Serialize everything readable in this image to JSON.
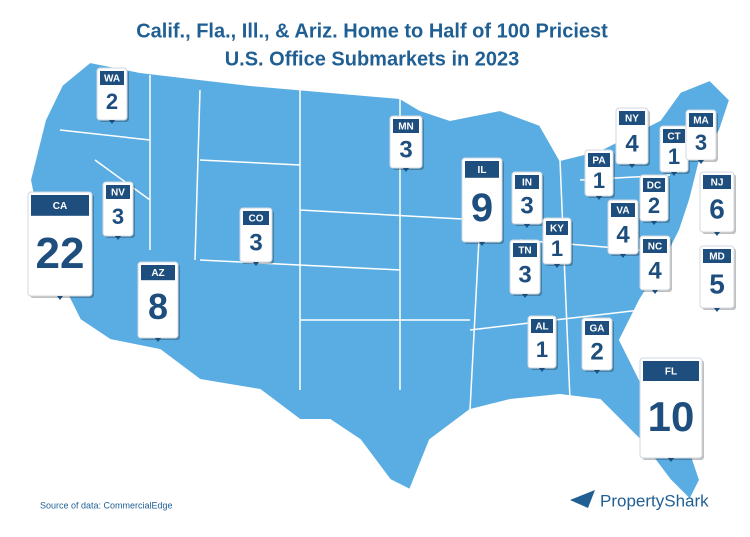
{
  "title": [
    "Calif., Fla., Ill., & Ariz. Home to Half of 100 Priciest",
    "U.S. Office Submarkets in 2023"
  ],
  "markers": [
    {
      "state": "WA",
      "count": "2"
    },
    {
      "state": "MN",
      "count": "3"
    },
    {
      "state": "NY",
      "count": "4"
    },
    {
      "state": "CT",
      "count": "1"
    },
    {
      "state": "MA",
      "count": "3"
    },
    {
      "state": "PA",
      "count": "1"
    },
    {
      "state": "IL",
      "count": "9"
    },
    {
      "state": "IN",
      "count": "3"
    },
    {
      "state": "KY",
      "count": "1"
    },
    {
      "state": "NV",
      "count": "3"
    },
    {
      "state": "CO",
      "count": "3"
    },
    {
      "state": "CA",
      "count": "22"
    },
    {
      "state": "AZ",
      "count": "8"
    },
    {
      "state": "TN",
      "count": "3"
    },
    {
      "state": "VA",
      "count": "4"
    },
    {
      "state": "DC",
      "count": "2"
    },
    {
      "state": "NJ",
      "count": "6"
    },
    {
      "state": "NC",
      "count": "4"
    },
    {
      "state": "MD",
      "count": "5"
    },
    {
      "state": "AL",
      "count": "1"
    },
    {
      "state": "GA",
      "count": "2"
    },
    {
      "state": "FL",
      "count": "10"
    }
  ],
  "source": "Source of data: CommercialEdge",
  "brand": "PropertyShark"
}
